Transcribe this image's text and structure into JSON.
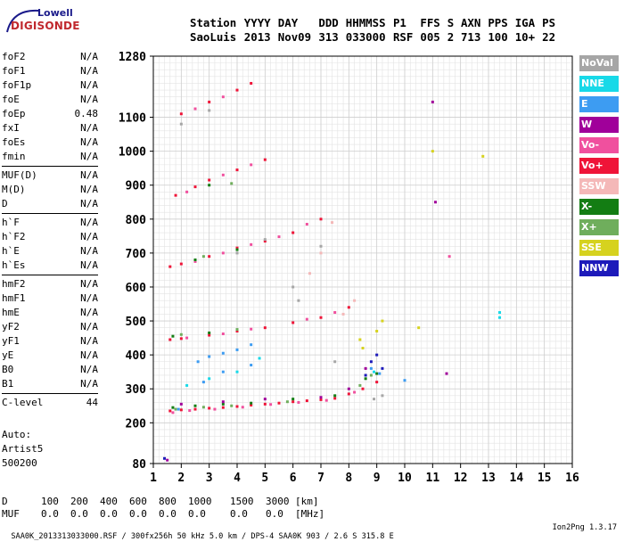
{
  "logo": {
    "line1": "Lowell",
    "line2": "DIGISONDE"
  },
  "header": {
    "labels": [
      "Station",
      "YYYY",
      "DAY",
      "DDD",
      "HHMMSS",
      "P1",
      "FFS",
      "S",
      "AXN",
      "PPS",
      "IGA",
      "PS"
    ],
    "values": [
      "SaoLuis",
      "2013",
      "Nov09",
      "313",
      "033000",
      "RSF",
      "005",
      "2",
      "713",
      "100",
      "10+",
      "22"
    ]
  },
  "params": {
    "groups": [
      [
        {
          "name": "foF2",
          "value": "N/A"
        },
        {
          "name": "foF1",
          "value": "N/A"
        },
        {
          "name": "foF1p",
          "value": "N/A"
        },
        {
          "name": "foE",
          "value": "N/A"
        },
        {
          "name": "foEp",
          "value": "0.48"
        },
        {
          "name": "fxI",
          "value": "N/A"
        },
        {
          "name": "foEs",
          "value": "N/A"
        },
        {
          "name": "fmin",
          "value": "N/A"
        }
      ],
      [
        {
          "name": "MUF(D)",
          "value": "N/A"
        },
        {
          "name": "M(D)",
          "value": "N/A"
        },
        {
          "name": "D",
          "value": "N/A"
        }
      ],
      [
        {
          "name": "h`F",
          "value": "N/A"
        },
        {
          "name": "h`F2",
          "value": "N/A"
        },
        {
          "name": "h`E",
          "value": "N/A"
        },
        {
          "name": "h`Es",
          "value": "N/A"
        }
      ],
      [
        {
          "name": "hmF2",
          "value": "N/A"
        },
        {
          "name": "hmF1",
          "value": "N/A"
        },
        {
          "name": "hmE",
          "value": "N/A"
        },
        {
          "name": "yF2",
          "value": "N/A"
        },
        {
          "name": "yF1",
          "value": "N/A"
        },
        {
          "name": "yE",
          "value": "N/A"
        },
        {
          "name": "B0",
          "value": "N/A"
        },
        {
          "name": "B1",
          "value": "N/A"
        }
      ],
      [
        {
          "name": "C-level",
          "value": "44"
        }
      ]
    ],
    "auto_label": "Auto:",
    "artist": "Artist5",
    "artist_code": "500200"
  },
  "legend": [
    {
      "label": "NoVal",
      "color": "#a6a6a6"
    },
    {
      "label": "NNE",
      "color": "#17d9e8"
    },
    {
      "label": "E",
      "color": "#3d9cf2"
    },
    {
      "label": "W",
      "color": "#a0009a"
    },
    {
      "label": "Vo-",
      "color": "#f0509e"
    },
    {
      "label": "Vo+",
      "color": "#ef1438"
    },
    {
      "label": "SSW",
      "color": "#f4b8b8"
    },
    {
      "label": "X-",
      "color": "#137d13"
    },
    {
      "label": "X+",
      "color": "#6fae5c"
    },
    {
      "label": "SSE",
      "color": "#d6d21e"
    },
    {
      "label": "NNW",
      "color": "#1d1aba"
    }
  ],
  "chart_data": {
    "type": "scatter",
    "xlim": [
      1,
      16
    ],
    "ylim": [
      80,
      1280
    ],
    "x_ticks": [
      1,
      2,
      3,
      4,
      5,
      6,
      7,
      8,
      9,
      10,
      11,
      12,
      13,
      14,
      15,
      16
    ],
    "y_ticks": [
      80,
      200,
      300,
      400,
      500,
      600,
      700,
      800,
      900,
      1000,
      1100,
      1280
    ],
    "grid": true,
    "series": [
      {
        "name": "Vo+",
        "points": [
          [
            1.6,
            235
          ],
          [
            2,
            238
          ],
          [
            2.5,
            240
          ],
          [
            3,
            243
          ],
          [
            3.5,
            245
          ],
          [
            4,
            248
          ],
          [
            4.5,
            252
          ],
          [
            5,
            255
          ],
          [
            5.5,
            258
          ],
          [
            6,
            262
          ],
          [
            6.5,
            265
          ],
          [
            7,
            268
          ],
          [
            7.5,
            272
          ],
          [
            8,
            285
          ],
          [
            8.5,
            300
          ],
          [
            9,
            320
          ],
          [
            1.6,
            445
          ],
          [
            2,
            448
          ],
          [
            3,
            458
          ],
          [
            4,
            470
          ],
          [
            5,
            480
          ],
          [
            6,
            495
          ],
          [
            7,
            510
          ],
          [
            8,
            540
          ],
          [
            1.6,
            660
          ],
          [
            2,
            668
          ],
          [
            3,
            690
          ],
          [
            4,
            715
          ],
          [
            5,
            735
          ],
          [
            6,
            760
          ],
          [
            7,
            800
          ],
          [
            1.8,
            870
          ],
          [
            2.5,
            895
          ],
          [
            3,
            915
          ],
          [
            4,
            945
          ],
          [
            5,
            975
          ],
          [
            2,
            1110
          ],
          [
            3,
            1145
          ],
          [
            4,
            1180
          ],
          [
            4.5,
            1200
          ]
        ]
      },
      {
        "name": "Vo-",
        "points": [
          [
            1.7,
            230
          ],
          [
            2.3,
            236
          ],
          [
            3.2,
            240
          ],
          [
            4.2,
            246
          ],
          [
            5.2,
            254
          ],
          [
            6.2,
            260
          ],
          [
            7.2,
            266
          ],
          [
            8.2,
            290
          ],
          [
            2.2,
            450
          ],
          [
            3.5,
            462
          ],
          [
            4.5,
            476
          ],
          [
            6.5,
            505
          ],
          [
            7.5,
            525
          ],
          [
            2.5,
            675
          ],
          [
            3.5,
            700
          ],
          [
            4.5,
            725
          ],
          [
            5.5,
            748
          ],
          [
            6.5,
            785
          ],
          [
            2.2,
            880
          ],
          [
            3.5,
            930
          ],
          [
            4.5,
            960
          ],
          [
            2.5,
            1125
          ],
          [
            3.5,
            1160
          ],
          [
            11.6,
            690
          ]
        ]
      },
      {
        "name": "X-",
        "points": [
          [
            1.7,
            245
          ],
          [
            2.5,
            250
          ],
          [
            3.5,
            255
          ],
          [
            4.5,
            258
          ],
          [
            6,
            270
          ],
          [
            7.5,
            280
          ],
          [
            8.6,
            330
          ],
          [
            9,
            345
          ],
          [
            1.7,
            455
          ],
          [
            3,
            465
          ],
          [
            2.5,
            680
          ],
          [
            4,
            710
          ],
          [
            3,
            900
          ]
        ]
      },
      {
        "name": "X+",
        "points": [
          [
            1.8,
            240
          ],
          [
            2.8,
            246
          ],
          [
            3.8,
            250
          ],
          [
            5.8,
            262
          ],
          [
            8.4,
            310
          ],
          [
            8.8,
            340
          ],
          [
            2,
            460
          ],
          [
            4,
            475
          ],
          [
            2.8,
            690
          ],
          [
            3.8,
            905
          ]
        ]
      },
      {
        "name": "E",
        "points": [
          [
            2.6,
            380
          ],
          [
            3,
            395
          ],
          [
            3.5,
            405
          ],
          [
            4,
            415
          ],
          [
            4.5,
            430
          ],
          [
            2.8,
            320
          ],
          [
            3.5,
            350
          ],
          [
            4.5,
            370
          ],
          [
            8.8,
            360
          ],
          [
            9.1,
            345
          ],
          [
            10,
            325
          ],
          [
            1.9,
            240
          ]
        ]
      },
      {
        "name": "NNE",
        "points": [
          [
            2.2,
            310
          ],
          [
            3,
            330
          ],
          [
            4,
            350
          ],
          [
            4.8,
            390
          ],
          [
            13.4,
            510
          ],
          [
            13.4,
            525
          ],
          [
            8.9,
            350
          ]
        ]
      },
      {
        "name": "W",
        "points": [
          [
            2,
            255
          ],
          [
            3.5,
            262
          ],
          [
            5,
            270
          ],
          [
            7,
            275
          ],
          [
            8,
            300
          ],
          [
            8.6,
            360
          ],
          [
            11,
            1145
          ],
          [
            11.1,
            850
          ],
          [
            1.5,
            90
          ],
          [
            11.5,
            345
          ]
        ]
      },
      {
        "name": "SSE",
        "points": [
          [
            8.5,
            420
          ],
          [
            9,
            470
          ],
          [
            9.2,
            500
          ],
          [
            10.5,
            480
          ],
          [
            12.8,
            985
          ],
          [
            11,
            1000
          ],
          [
            8.4,
            445
          ]
        ]
      },
      {
        "name": "NNW",
        "points": [
          [
            8.8,
            380
          ],
          [
            9,
            400
          ],
          [
            9.2,
            360
          ],
          [
            8.6,
            340
          ],
          [
            1.4,
            95
          ]
        ]
      },
      {
        "name": "SSW",
        "points": [
          [
            7.8,
            520
          ],
          [
            8.2,
            560
          ],
          [
            6.6,
            640
          ],
          [
            7,
            700
          ],
          [
            7.4,
            790
          ]
        ]
      },
      {
        "name": "NoVal",
        "points": [
          [
            2,
            1080
          ],
          [
            3,
            1120
          ],
          [
            4,
            700
          ],
          [
            5,
            740
          ],
          [
            6,
            600
          ],
          [
            7,
            720
          ],
          [
            7.5,
            380
          ],
          [
            6.2,
            560
          ],
          [
            8.9,
            270
          ],
          [
            9.2,
            280
          ]
        ]
      }
    ]
  },
  "bottom_table": {
    "d_label": "D",
    "d_values": [
      "100",
      "200",
      "400",
      "600",
      "800",
      "1000",
      "1500",
      "3000"
    ],
    "d_unit": "[km]",
    "muf_label": "MUF",
    "muf_values": [
      "0.0",
      "0.0",
      "0.0",
      "0.0",
      "0.0",
      "0.0",
      "0.0",
      "0.0"
    ],
    "muf_unit": "[MHz]"
  },
  "footer": {
    "left": "SAA0K_2013313033000.RSF / 300fx256h 50 kHz 5.0 km / DPS-4 SAA0K 903 / 2.6 S 315.8 E",
    "right": "Ion2Png 1.3.17"
  }
}
